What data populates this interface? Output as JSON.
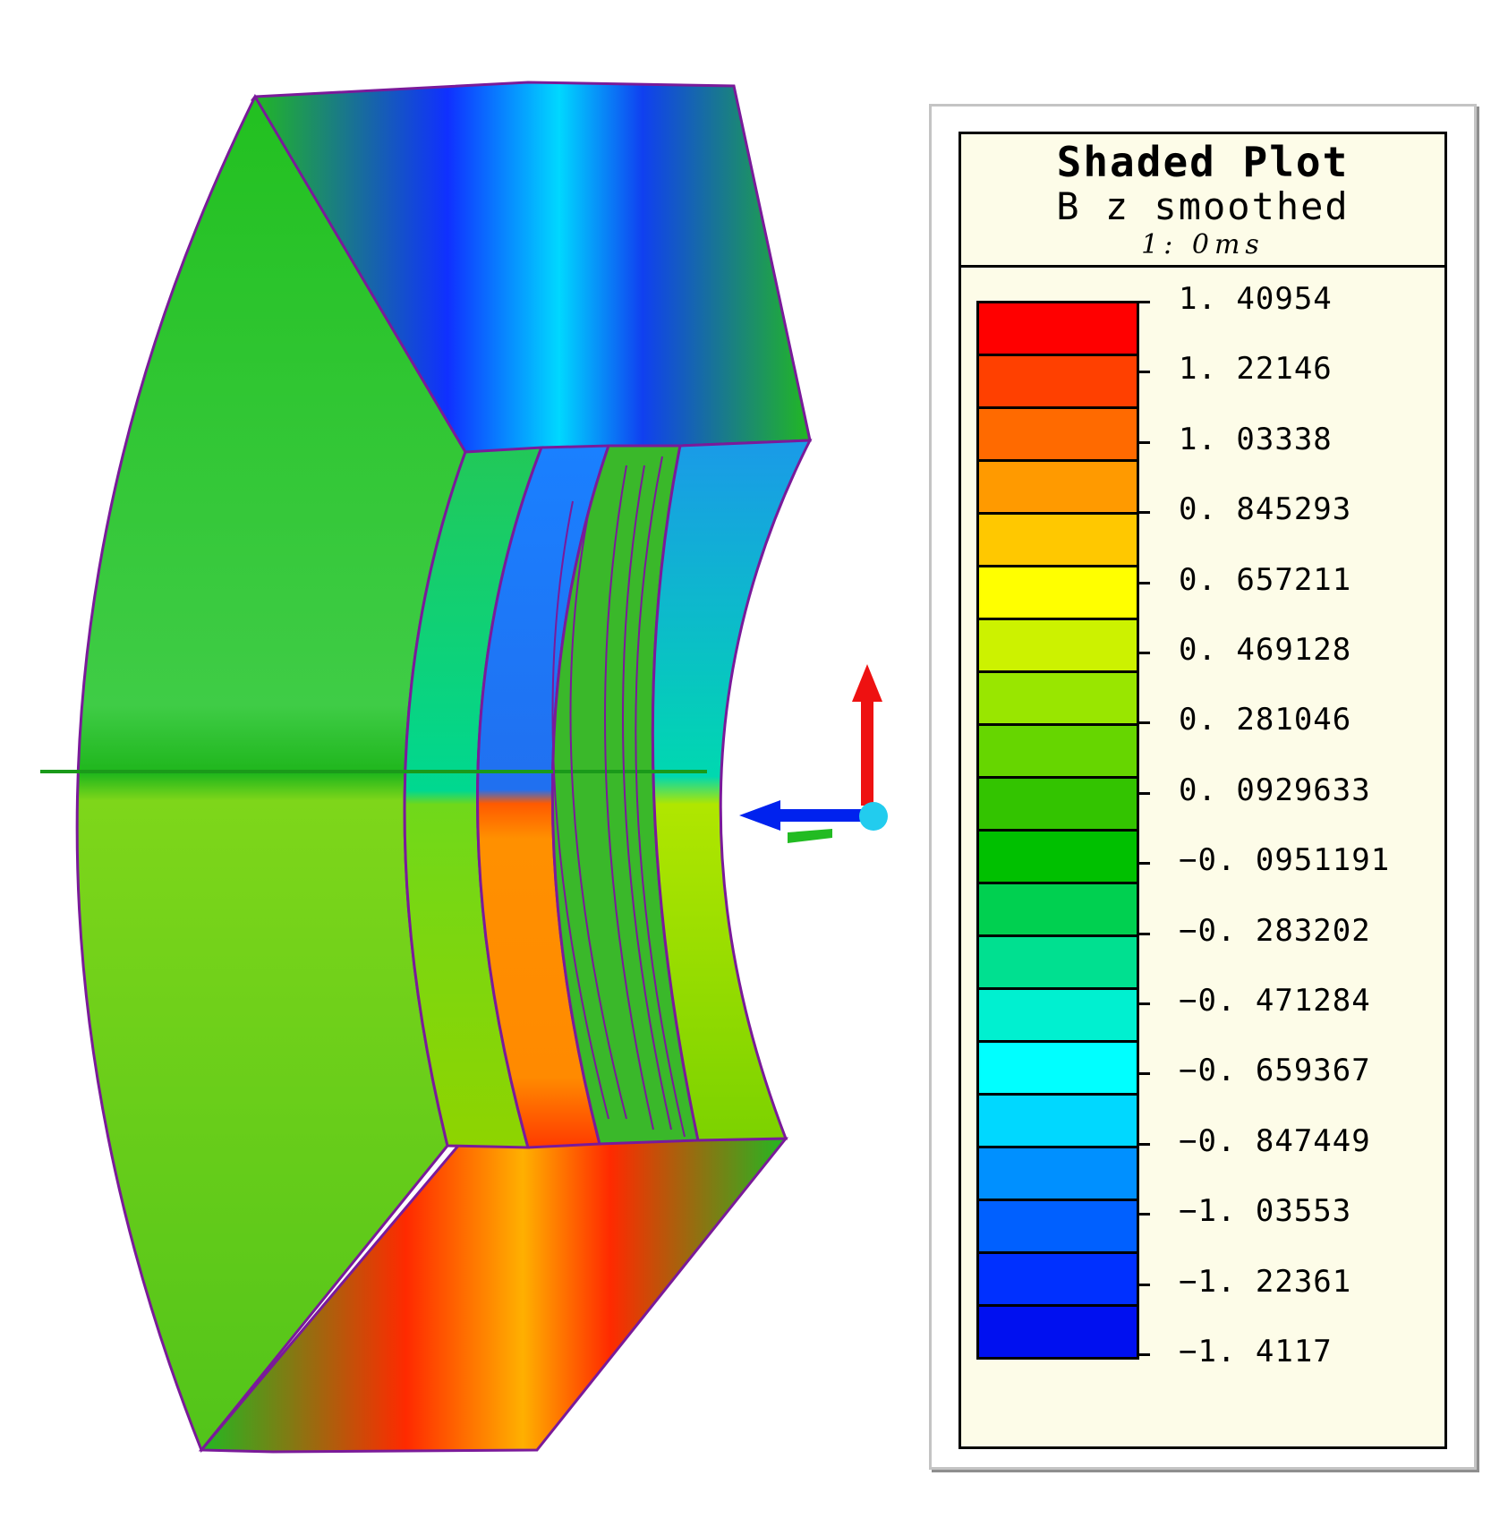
{
  "legend": {
    "title": "Shaded Plot",
    "subtitle": "B z smoothed",
    "time": "1: 0ms",
    "levels": [
      {
        "label": "1. 40954",
        "color": "#ff0000"
      },
      {
        "label": "1. 22146",
        "color": "#ff3a00"
      },
      {
        "label": "1. 03338",
        "color": "#ff6a00"
      },
      {
        "label": "0. 845293",
        "color": "#ff9900"
      },
      {
        "label": "0. 657211",
        "color": "#ffc800"
      },
      {
        "label": "0. 469128",
        "color": "#ffff00"
      },
      {
        "label": "0. 281046",
        "color": "#c8f000"
      },
      {
        "label": "0. 0929633",
        "color": "#96e000"
      },
      {
        "label": "−0. 0951191",
        "color": "#64d000"
      },
      {
        "label": "−0. 283202",
        "color": "#32c000"
      },
      {
        "label": "−0. 471284",
        "color": "#00c010"
      },
      {
        "label": "−0. 659367",
        "color": "#00d050"
      },
      {
        "label": "−0. 847449",
        "color": "#00e090"
      },
      {
        "label": "−1. 03553",
        "color": "#00f0d0"
      },
      {
        "label": "−1. 22361",
        "color": "#00ffff"
      },
      {
        "label": "−1. 4117",
        "color": "#00d8ff"
      }
    ],
    "extra_colors": [
      "#0090ff",
      "#0060ff",
      "#0030ff",
      "#0010f0"
    ]
  },
  "axes_triad": {
    "up_color": "#ee1111",
    "left_color": "#0022ee",
    "origin_color": "#22ccee",
    "depth_color": "#22bb22"
  }
}
